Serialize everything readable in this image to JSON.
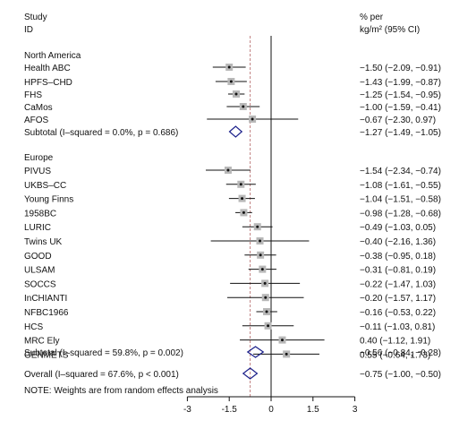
{
  "chart_data": {
    "type": "forest",
    "headers": {
      "left_line1": "Study",
      "left_line2": "ID",
      "right_line1": "% per",
      "right_line2": "kg/m² (95% CI)"
    },
    "groups": [
      {
        "name": "North America",
        "studies": [
          {
            "label": "Health ABC",
            "est": -1.5,
            "lo": -2.09,
            "hi": -0.91,
            "ci_text": "−1.50 (−2.09, −0.91)"
          },
          {
            "label": "HPFS–CHD",
            "est": -1.43,
            "lo": -1.99,
            "hi": -0.87,
            "ci_text": "−1.43 (−1.99, −0.87)"
          },
          {
            "label": "FHS",
            "est": -1.25,
            "lo": -1.54,
            "hi": -0.95,
            "ci_text": "−1.25 (−1.54, −0.95)"
          },
          {
            "label": "CaMos",
            "est": -1.0,
            "lo": -1.59,
            "hi": -0.41,
            "ci_text": "−1.00 (−1.59, −0.41)"
          },
          {
            "label": "AFOS",
            "est": -0.67,
            "lo": -2.3,
            "hi": 0.97,
            "ci_text": "−0.67 (−2.30, 0.97)"
          }
        ],
        "subtotal": {
          "label": "Subtotal  (I–squared = 0.0%, p = 0.686)",
          "est": -1.27,
          "lo": -1.49,
          "hi": -1.05,
          "ci_text": "−1.27 (−1.49, −1.05)"
        }
      },
      {
        "name": "Europe",
        "studies": [
          {
            "label": "PIVUS",
            "est": -1.54,
            "lo": -2.34,
            "hi": -0.74,
            "ci_text": "−1.54 (−2.34, −0.74)"
          },
          {
            "label": "UKBS–CC",
            "est": -1.08,
            "lo": -1.61,
            "hi": -0.55,
            "ci_text": "−1.08 (−1.61, −0.55)"
          },
          {
            "label": "Young Finns",
            "est": -1.04,
            "lo": -1.51,
            "hi": -0.58,
            "ci_text": "−1.04 (−1.51, −0.58)"
          },
          {
            "label": "1958BC",
            "est": -0.98,
            "lo": -1.28,
            "hi": -0.68,
            "ci_text": "−0.98 (−1.28, −0.68)"
          },
          {
            "label": "LURIC",
            "est": -0.49,
            "lo": -1.03,
            "hi": 0.05,
            "ci_text": "−0.49 (−1.03, 0.05)"
          },
          {
            "label": "Twins UK",
            "est": -0.4,
            "lo": -2.16,
            "hi": 1.36,
            "ci_text": "−0.40 (−2.16, 1.36)"
          },
          {
            "label": "GOOD",
            "est": -0.38,
            "lo": -0.95,
            "hi": 0.18,
            "ci_text": "−0.38 (−0.95, 0.18)"
          },
          {
            "label": "ULSAM",
            "est": -0.31,
            "lo": -0.81,
            "hi": 0.19,
            "ci_text": "−0.31 (−0.81, 0.19)"
          },
          {
            "label": "SOCCS",
            "est": -0.22,
            "lo": -1.47,
            "hi": 1.03,
            "ci_text": "−0.22 (−1.47, 1.03)"
          },
          {
            "label": "InCHIANTI",
            "est": -0.2,
            "lo": -1.57,
            "hi": 1.17,
            "ci_text": "−0.20 (−1.57, 1.17)"
          },
          {
            "label": "NFBC1966",
            "est": -0.16,
            "lo": -0.53,
            "hi": 0.22,
            "ci_text": "−0.16 (−0.53, 0.22)"
          },
          {
            "label": "HCS",
            "est": -0.11,
            "lo": -1.03,
            "hi": 0.81,
            "ci_text": "−0.11 (−1.03, 0.81)"
          },
          {
            "label": "MRC Ely",
            "est": 0.4,
            "lo": -1.12,
            "hi": 1.91,
            "ci_text": "0.40 (−1.12, 1.91)"
          },
          {
            "label": "GENMETS",
            "est": 0.55,
            "lo": -0.64,
            "hi": 1.73,
            "ci_text": "0.55 (−0.64, 1.73)"
          }
        ],
        "subtotal": {
          "label": "Subtotal  (I–squared = 59.8%, p = 0.002)",
          "est": -0.56,
          "lo": -0.84,
          "hi": -0.28,
          "ci_text": "−0.56 (−0.84, −0.28)"
        }
      }
    ],
    "overall": {
      "label": "Overall  (I–squared = 67.6%, p  < 0.001)",
      "est": -0.75,
      "lo": -1.0,
      "hi": -0.5,
      "ci_text": "−0.75 (−1.00, −0.50)"
    },
    "note": "NOTE: Weights are from random effects analysis",
    "xlim": [
      -3.2,
      3.2
    ],
    "xticks": [
      -3,
      -1.5,
      0,
      1.5,
      3
    ],
    "xtick_labels": [
      "-3",
      "-1.5",
      "0",
      "1.5",
      "3"
    ],
    "null_line": 0,
    "colors": {
      "marker_box": "#b8b8b8",
      "reference_line": "#c08080",
      "diamond": "#1a1f8a",
      "line": "#111111"
    }
  }
}
